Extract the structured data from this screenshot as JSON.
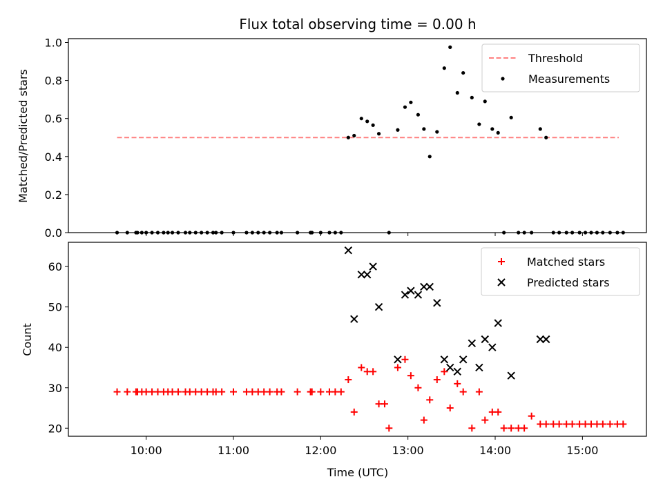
{
  "colors": {
    "threshold": "#ff8080",
    "measurement": "#000000",
    "matched": "#ff0000",
    "predicted": "#000000"
  },
  "chart_data": [
    {
      "type": "scatter",
      "title": "Flux total observing time = 0.00 h",
      "xlabel": "",
      "ylabel": "Matched/Predicted stars",
      "ylim": [
        0,
        1.02
      ],
      "yticks": [
        "0.0",
        "0.2",
        "0.4",
        "0.6",
        "0.8",
        "1.0"
      ],
      "grid": false,
      "legend": "top-right",
      "threshold": {
        "name": "Threshold",
        "x": [
          "09:40",
          "15:25"
        ],
        "value": 0.5
      },
      "series": [
        {
          "name": "Measurements",
          "points": [
            [
              "09:40",
              0
            ],
            [
              "09:47",
              0
            ],
            [
              "09:53",
              0
            ],
            [
              "09:54",
              0
            ],
            [
              "09:57",
              0
            ],
            [
              "10:00",
              0
            ],
            [
              "10:04",
              0
            ],
            [
              "10:08",
              0
            ],
            [
              "10:12",
              0
            ],
            [
              "10:15",
              0
            ],
            [
              "10:18",
              0
            ],
            [
              "10:22",
              0
            ],
            [
              "10:27",
              0
            ],
            [
              "10:30",
              0
            ],
            [
              "10:34",
              0
            ],
            [
              "10:38",
              0
            ],
            [
              "10:42",
              0
            ],
            [
              "10:46",
              0
            ],
            [
              "10:48",
              0
            ],
            [
              "10:52",
              0
            ],
            [
              "11:00",
              0
            ],
            [
              "11:09",
              0
            ],
            [
              "11:13",
              0
            ],
            [
              "11:17",
              0
            ],
            [
              "11:21",
              0
            ],
            [
              "11:25",
              0
            ],
            [
              "11:30",
              0
            ],
            [
              "11:33",
              0
            ],
            [
              "11:44",
              0
            ],
            [
              "11:53",
              0
            ],
            [
              "11:54",
              0
            ],
            [
              "12:00",
              0
            ],
            [
              "12:06",
              0
            ],
            [
              "12:10",
              0
            ],
            [
              "12:14",
              0
            ],
            [
              "12:19",
              0.5
            ],
            [
              "12:23",
              0.51
            ],
            [
              "12:28",
              0.6
            ],
            [
              "12:32",
              0.585
            ],
            [
              "12:36",
              0.565
            ],
            [
              "12:40",
              0.52
            ],
            [
              "12:47",
              0
            ],
            [
              "12:53",
              0.54
            ],
            [
              "12:58",
              0.66
            ],
            [
              "13:02",
              0.685
            ],
            [
              "13:07",
              0.62
            ],
            [
              "13:11",
              0.545
            ],
            [
              "13:15",
              0.4
            ],
            [
              "13:20",
              0.53
            ],
            [
              "13:25",
              0.865
            ],
            [
              "13:29",
              0.975
            ],
            [
              "13:34",
              0.735
            ],
            [
              "13:38",
              0.84
            ],
            [
              "13:44",
              0.71
            ],
            [
              "13:49",
              0.57
            ],
            [
              "13:53",
              0.69
            ],
            [
              "13:58",
              0.545
            ],
            [
              "14:02",
              0.525
            ],
            [
              "14:06",
              0
            ],
            [
              "14:11",
              0.605
            ],
            [
              "14:16",
              0
            ],
            [
              "14:20",
              0
            ],
            [
              "14:25",
              0
            ],
            [
              "14:31",
              0.545
            ],
            [
              "14:35",
              0.5
            ],
            [
              "14:40",
              0
            ],
            [
              "14:44",
              0
            ],
            [
              "14:49",
              0
            ],
            [
              "14:53",
              0
            ],
            [
              "14:58",
              0
            ],
            [
              "15:02",
              0
            ],
            [
              "15:06",
              0
            ],
            [
              "15:10",
              0
            ],
            [
              "15:14",
              0
            ],
            [
              "15:19",
              0
            ],
            [
              "15:24",
              0
            ],
            [
              "15:28",
              0
            ]
          ]
        }
      ]
    },
    {
      "type": "scatter",
      "title": "",
      "xlabel": "Time (UTC)",
      "ylabel": "Count",
      "ylim": [
        18,
        66
      ],
      "yticks": [
        "20",
        "30",
        "40",
        "50",
        "60"
      ],
      "xticks": [
        "10:00",
        "11:00",
        "12:00",
        "13:00",
        "14:00",
        "15:00"
      ],
      "grid": false,
      "legend": "top-right",
      "series": [
        {
          "name": "Matched stars",
          "marker": "+",
          "points": [
            [
              "09:40",
              29
            ],
            [
              "09:47",
              29
            ],
            [
              "09:53",
              29
            ],
            [
              "09:54",
              29
            ],
            [
              "09:57",
              29
            ],
            [
              "10:00",
              29
            ],
            [
              "10:04",
              29
            ],
            [
              "10:08",
              29
            ],
            [
              "10:12",
              29
            ],
            [
              "10:15",
              29
            ],
            [
              "10:18",
              29
            ],
            [
              "10:22",
              29
            ],
            [
              "10:27",
              29
            ],
            [
              "10:30",
              29
            ],
            [
              "10:34",
              29
            ],
            [
              "10:38",
              29
            ],
            [
              "10:42",
              29
            ],
            [
              "10:46",
              29
            ],
            [
              "10:48",
              29
            ],
            [
              "10:52",
              29
            ],
            [
              "11:00",
              29
            ],
            [
              "11:09",
              29
            ],
            [
              "11:13",
              29
            ],
            [
              "11:17",
              29
            ],
            [
              "11:21",
              29
            ],
            [
              "11:25",
              29
            ],
            [
              "11:30",
              29
            ],
            [
              "11:33",
              29
            ],
            [
              "11:44",
              29
            ],
            [
              "11:53",
              29
            ],
            [
              "11:54",
              29
            ],
            [
              "12:00",
              29
            ],
            [
              "12:06",
              29
            ],
            [
              "12:10",
              29
            ],
            [
              "12:14",
              29
            ],
            [
              "12:19",
              32
            ],
            [
              "12:23",
              24
            ],
            [
              "12:28",
              35
            ],
            [
              "12:32",
              34
            ],
            [
              "12:36",
              34
            ],
            [
              "12:40",
              26
            ],
            [
              "12:44",
              26
            ],
            [
              "12:47",
              20
            ],
            [
              "12:53",
              35
            ],
            [
              "12:58",
              37
            ],
            [
              "13:02",
              33
            ],
            [
              "13:07",
              30
            ],
            [
              "13:11",
              22
            ],
            [
              "13:15",
              27
            ],
            [
              "13:20",
              32
            ],
            [
              "13:25",
              34
            ],
            [
              "13:29",
              25
            ],
            [
              "13:34",
              31
            ],
            [
              "13:38",
              29
            ],
            [
              "13:44",
              20
            ],
            [
              "13:49",
              29
            ],
            [
              "13:53",
              22
            ],
            [
              "13:58",
              24
            ],
            [
              "14:02",
              24
            ],
            [
              "14:06",
              20
            ],
            [
              "14:11",
              20
            ],
            [
              "14:16",
              20
            ],
            [
              "14:20",
              20
            ],
            [
              "14:25",
              23
            ],
            [
              "14:31",
              21
            ],
            [
              "14:35",
              21
            ],
            [
              "14:40",
              21
            ],
            [
              "14:44",
              21
            ],
            [
              "14:49",
              21
            ],
            [
              "14:53",
              21
            ],
            [
              "14:58",
              21
            ],
            [
              "15:02",
              21
            ],
            [
              "15:06",
              21
            ],
            [
              "15:10",
              21
            ],
            [
              "15:14",
              21
            ],
            [
              "15:19",
              21
            ],
            [
              "15:24",
              21
            ],
            [
              "15:28",
              21
            ]
          ]
        },
        {
          "name": "Predicted stars",
          "marker": "x",
          "points": [
            [
              "12:19",
              64
            ],
            [
              "12:23",
              47
            ],
            [
              "12:28",
              58
            ],
            [
              "12:32",
              58
            ],
            [
              "12:36",
              60
            ],
            [
              "12:40",
              50
            ],
            [
              "12:53",
              37
            ],
            [
              "12:58",
              53
            ],
            [
              "13:02",
              54
            ],
            [
              "13:07",
              53
            ],
            [
              "13:11",
              55
            ],
            [
              "13:15",
              55
            ],
            [
              "13:20",
              51
            ],
            [
              "13:25",
              37
            ],
            [
              "13:29",
              35
            ],
            [
              "13:34",
              34
            ],
            [
              "13:38",
              37
            ],
            [
              "13:44",
              41
            ],
            [
              "13:49",
              35
            ],
            [
              "13:53",
              42
            ],
            [
              "13:58",
              40
            ],
            [
              "14:02",
              46
            ],
            [
              "14:11",
              33
            ],
            [
              "14:31",
              42
            ],
            [
              "14:35",
              42
            ]
          ]
        }
      ]
    }
  ]
}
